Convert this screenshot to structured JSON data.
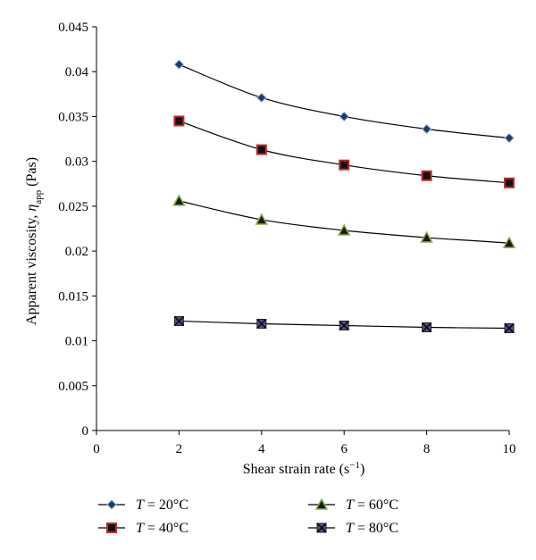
{
  "chart_data": {
    "type": "line",
    "xlabel": "Shear strain rate",
    "xlabel_unit_base": "(s",
    "xlabel_unit_sup": "−1",
    "xlabel_unit_close": ")",
    "ylabel_prefix": "Apparent viscosity, ",
    "ylabel_symbol": "η",
    "ylabel_sub": "app",
    "ylabel_unit": " (Pas)",
    "xlim": [
      0,
      10
    ],
    "ylim": [
      0,
      0.045
    ],
    "x_ticks": [
      "0",
      "2",
      "4",
      "6",
      "8",
      "10"
    ],
    "y_ticks": [
      "0",
      "0.005",
      "0.01",
      "0.015",
      "0.02",
      "0.025",
      "0.03",
      "0.035",
      "0.04",
      "0.045"
    ],
    "grid": false,
    "legend_position": "bottom",
    "x": [
      2,
      4,
      6,
      8,
      10
    ],
    "series": [
      {
        "name": "T = 20°C",
        "legend_var": "T",
        "legend_rest": " = 20°C",
        "marker": "diamond",
        "marker_color": "#1f3a6e",
        "values": [
          0.0408,
          0.0371,
          0.035,
          0.0336,
          0.0326
        ]
      },
      {
        "name": "T = 40°C",
        "legend_var": "T",
        "legend_rest": " = 40°C",
        "marker": "square",
        "marker_color": "#c62828",
        "values": [
          0.0345,
          0.0313,
          0.0296,
          0.0284,
          0.0276
        ]
      },
      {
        "name": "T = 60°C",
        "legend_var": "T",
        "legend_rest": " = 60°C",
        "marker": "triangle",
        "marker_color": "#8ab04a",
        "values": [
          0.0256,
          0.0235,
          0.0223,
          0.0215,
          0.0209
        ]
      },
      {
        "name": "T = 80°C",
        "legend_var": "T",
        "legend_rest": " = 80°C",
        "marker": "xsquare",
        "marker_color": "#5b4a86",
        "values": [
          0.0122,
          0.0119,
          0.0117,
          0.0115,
          0.0114
        ]
      }
    ]
  }
}
